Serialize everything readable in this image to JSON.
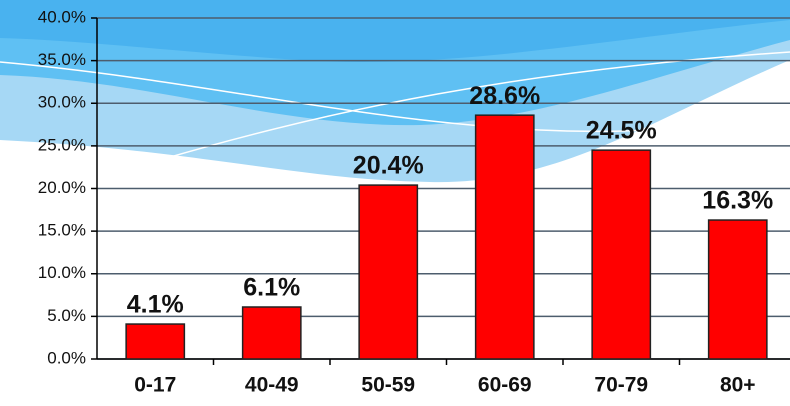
{
  "chart_data": {
    "type": "bar",
    "categories": [
      "0-17",
      "40-49",
      "50-59",
      "60-69",
      "70-79",
      "80+"
    ],
    "values": [
      4.1,
      6.1,
      20.4,
      28.6,
      24.5,
      16.3
    ],
    "value_labels": [
      "4.1%",
      "6.1%",
      "20.4%",
      "28.6%",
      "24.5%",
      "16.3%"
    ],
    "color": "#ff0000",
    "ylim": [
      0,
      40
    ],
    "yticks": [
      {
        "value": 0,
        "label": "0.0%"
      },
      {
        "value": 5,
        "label": "5.0%"
      },
      {
        "value": 10,
        "label": "10.0%"
      },
      {
        "value": 15,
        "label": "15.0%"
      },
      {
        "value": 20,
        "label": "20.0%"
      },
      {
        "value": 25,
        "label": "25.0%"
      },
      {
        "value": 30,
        "label": "30.0%"
      },
      {
        "value": 35,
        "label": "35.0%"
      },
      {
        "value": 40,
        "label": "40.0%"
      }
    ],
    "grid": true
  }
}
